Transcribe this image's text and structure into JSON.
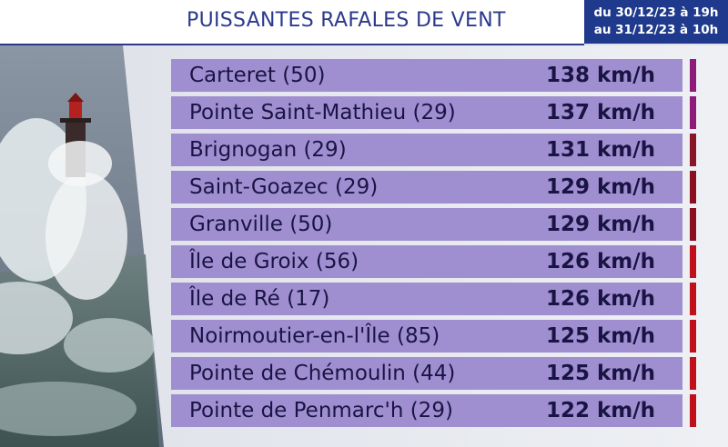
{
  "header": {
    "title": "PUISSANTES RAFALES DE VENT",
    "date_line1": "du 30/12/23 à 19h",
    "date_line2": "au 31/12/23 à 10h"
  },
  "colors": {
    "title": "#2b3a8c",
    "date_box": "#1f3a8c",
    "row_bg": "#9f8fd0",
    "row_text": "#1a1445"
  },
  "stations": [
    {
      "name": "Carteret (50)",
      "value": "138 km/h",
      "color": "#8e1a7a"
    },
    {
      "name": "Pointe Saint-Mathieu (29)",
      "value": "137 km/h",
      "color": "#8e1a7a"
    },
    {
      "name": "Brignogan (29)",
      "value": "131 km/h",
      "color": "#8a1428"
    },
    {
      "name": "Saint-Goazec (29)",
      "value": "129 km/h",
      "color": "#8a1020"
    },
    {
      "name": "Granville (50)",
      "value": "129 km/h",
      "color": "#8a1020"
    },
    {
      "name": "Île de Groix (56)",
      "value": "126 km/h",
      "color": "#c0111a"
    },
    {
      "name": "Île de Ré (17)",
      "value": "126 km/h",
      "color": "#c0111a"
    },
    {
      "name": "Noirmoutier-en-l'Île (85)",
      "value": "125 km/h",
      "color": "#c0111a"
    },
    {
      "name": "Pointe de Chémoulin (44)",
      "value": "125 km/h",
      "color": "#c0111a"
    },
    {
      "name": "Pointe de Penmarc'h (29)",
      "value": "122 km/h",
      "color": "#c0111a"
    }
  ]
}
